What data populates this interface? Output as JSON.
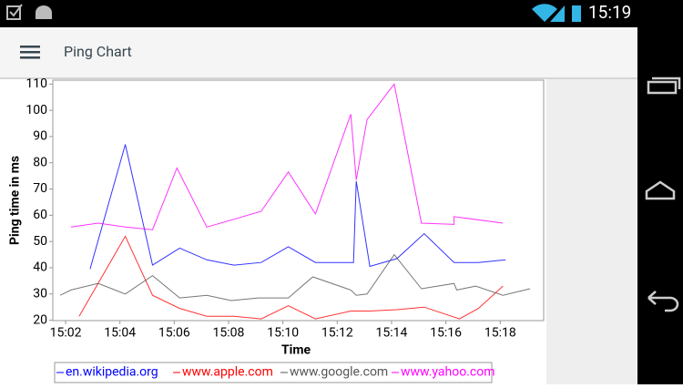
{
  "status_bar": {
    "time": "15:19"
  },
  "app_bar": {
    "title": "Ping Chart"
  },
  "chart_data": {
    "type": "line",
    "x_label": "Time",
    "y_label": "Ping time in ms",
    "grid": false,
    "xlim": [
      901.53,
      919.6
    ],
    "ylim": [
      19.85,
      111.5
    ],
    "xticks": [
      {
        "value": 902,
        "label": "15:02"
      },
      {
        "value": 904,
        "label": "15:04"
      },
      {
        "value": 906,
        "label": "15:06"
      },
      {
        "value": 908,
        "label": "15:08"
      },
      {
        "value": 910,
        "label": "15:10"
      },
      {
        "value": 912,
        "label": "15:12"
      },
      {
        "value": 914,
        "label": "15:14"
      },
      {
        "value": 916,
        "label": "15:16"
      },
      {
        "value": 918,
        "label": "15:18"
      }
    ],
    "yticks": [
      20,
      30,
      40,
      50,
      60,
      70,
      80,
      90,
      100,
      110
    ],
    "series": [
      {
        "name": "en.wikipedia.org",
        "color": "#0000ff",
        "x": [
          902.9,
          904.2,
          905.2,
          906.2,
          907.2,
          908.2,
          909.2,
          910.2,
          911.2,
          912.6,
          912.7,
          913.2,
          914.2,
          915.2,
          916.3,
          917.2,
          918.2
        ],
        "values": [
          39.5,
          87,
          41,
          47.5,
          43,
          41,
          42,
          48,
          42,
          42,
          73,
          40.5,
          43.5,
          53,
          42,
          42,
          43
        ]
      },
      {
        "name": "www.apple.com",
        "color": "#ff0000",
        "x": [
          902.5,
          904.2,
          905.2,
          906.2,
          907.2,
          908.2,
          909.2,
          910.2,
          911.2,
          912.5,
          913.2,
          914.2,
          915.2,
          916.5,
          917.2,
          918.1
        ],
        "values": [
          21.5,
          52,
          29.5,
          24.5,
          21.5,
          21.5,
          20.5,
          25.5,
          20.5,
          23.5,
          23.5,
          24,
          25,
          20.5,
          24.5,
          33
        ]
      },
      {
        "name": "www.google.com",
        "color": "#555555",
        "x": [
          901.8,
          902.2,
          903.2,
          904.2,
          905.2,
          906.2,
          907.2,
          908.1,
          909.1,
          910.2,
          911.1,
          912.5,
          912.7,
          913.1,
          914.1,
          915.1,
          916.3,
          916.4,
          917.1,
          918.1,
          919.1
        ],
        "values": [
          29.5,
          31.5,
          34,
          30,
          37,
          28.5,
          29.5,
          27.5,
          28.5,
          28.5,
          36.5,
          31.5,
          29.5,
          30,
          45,
          32,
          34,
          31.5,
          33,
          29.5,
          32
        ]
      },
      {
        "name": "www.yahoo.com",
        "color": "#ff00ff",
        "x": [
          902.2,
          903.2,
          904.2,
          905.2,
          906.1,
          907.2,
          908.2,
          909.2,
          910.2,
          911.2,
          912.5,
          912.7,
          913.1,
          914.1,
          915.1,
          916.3,
          916.3,
          918.1
        ],
        "values": [
          55.5,
          57,
          55.5,
          54.5,
          78,
          55.5,
          58.5,
          61.5,
          76.5,
          60.5,
          98.5,
          73.5,
          96.5,
          110,
          57,
          56.5,
          59.5,
          57
        ]
      }
    ]
  }
}
